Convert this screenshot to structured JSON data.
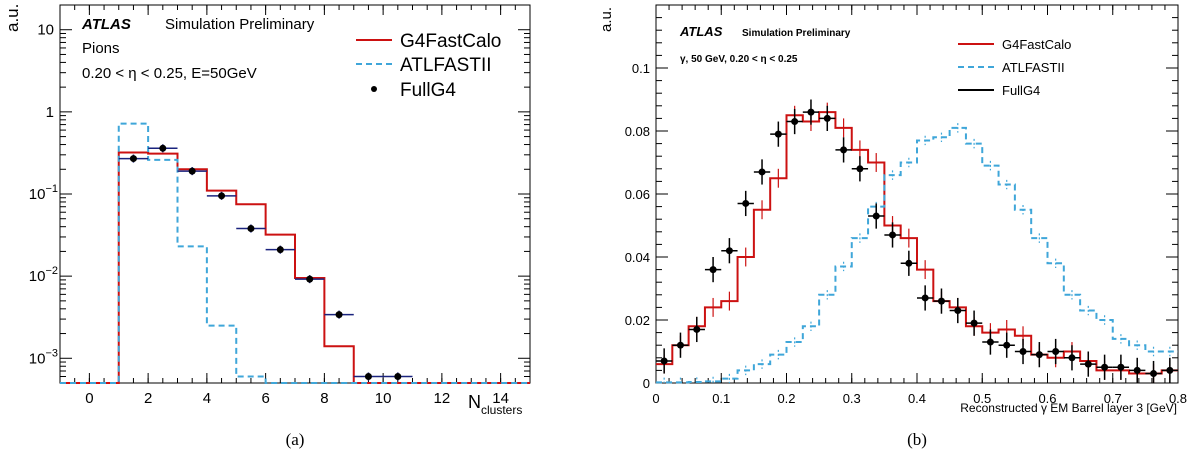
{
  "colors": {
    "g4": "#cc1111",
    "af": "#3fa6d9",
    "full": "#000000",
    "full_err_a": "#1a237e"
  },
  "captions": [
    "(a)",
    "(b)"
  ],
  "chart_data": [
    {
      "type": "line",
      "scale_y": "log",
      "xlim": [
        -1,
        15
      ],
      "ylim": [
        0.0005,
        20
      ],
      "xticks": [
        0,
        2,
        4,
        6,
        8,
        10,
        12,
        14
      ],
      "xtick_labels": [
        "0",
        "2",
        "4",
        "6",
        "8",
        "10",
        "12",
        "14"
      ],
      "yticks": [
        0.001,
        0.01,
        0.1,
        1,
        10
      ],
      "ytick_labels": [
        [
          "10",
          "−3"
        ],
        [
          "10",
          "−2"
        ],
        [
          "10",
          "−1"
        ],
        [
          "1",
          ""
        ],
        [
          "10",
          ""
        ]
      ],
      "ylabel": "a.u.",
      "xlabel_main": "N",
      "xlabel_sub": "clusters",
      "atlas": "ATLAS",
      "status": "Simulation Preliminary",
      "notes": [
        "Pions",
        "0.20 < η < 0.25, E=50GeV"
      ],
      "legend": [
        "G4FastCalo",
        "ATLFASTII",
        "FullG4"
      ],
      "floor": 0.0005,
      "series": [
        {
          "name": "G4FastCalo",
          "style": "step",
          "edges": [
            -1,
            0,
            1,
            2,
            3,
            4,
            5,
            6,
            7,
            8,
            9,
            10,
            11,
            12,
            13,
            14,
            15
          ],
          "values": [
            0.0005,
            0.0005,
            0.32,
            0.31,
            0.2,
            0.11,
            0.075,
            0.032,
            0.0095,
            0.0014,
            0.0005,
            0.0005,
            0.0005,
            0.0005,
            0.0005,
            0.0005
          ]
        },
        {
          "name": "ATLFASTII",
          "style": "step-dashed",
          "edges": [
            -1,
            0,
            1,
            2,
            3,
            4,
            5,
            6,
            7,
            8,
            9,
            10,
            11,
            12,
            13,
            14,
            15
          ],
          "values": [
            0.0005,
            0.0005,
            0.72,
            0.26,
            0.023,
            0.0025,
            0.0006,
            0.0005,
            0.0005,
            0.0005,
            0.0005,
            0.0005,
            0.0005,
            0.0005,
            0.0005,
            0.0005
          ]
        },
        {
          "name": "FullG4",
          "style": "points",
          "x": [
            1.5,
            2.5,
            3.5,
            4.5,
            5.5,
            6.5,
            7.5,
            8.5,
            9.5,
            10.5
          ],
          "y": [
            0.27,
            0.36,
            0.19,
            0.095,
            0.038,
            0.021,
            0.0092,
            0.0034,
            0.0006,
            0.0006
          ]
        }
      ]
    },
    {
      "type": "line",
      "scale_y": "linear",
      "xlim": [
        0,
        0.8
      ],
      "ylim": [
        0,
        0.12
      ],
      "xticks": [
        0,
        0.1,
        0.2,
        0.3,
        0.4,
        0.5,
        0.6,
        0.7,
        0.8
      ],
      "xtick_labels": [
        "0",
        "0.1",
        "0.2",
        "0.3",
        "0.4",
        "0.5",
        "0.6",
        "0.7",
        "0.8"
      ],
      "yticks": [
        0,
        0.02,
        0.04,
        0.06,
        0.08,
        0.1
      ],
      "ytick_labels": [
        "0",
        "0.02",
        "0.04",
        "0.06",
        "0.08",
        "0.1"
      ],
      "ylabel": "a.u.",
      "xlabel": "Reconstructed γ EM Barrel layer 3 [GeV]",
      "atlas": "ATLAS",
      "status": "Simulation Preliminary",
      "notes": [
        "γ, 50 GeV, 0.20 < η < 0.25"
      ],
      "legend": [
        "G4FastCalo",
        "ATLFASTII",
        "FullG4"
      ],
      "series": [
        {
          "name": "G4FastCalo",
          "style": "step",
          "values": [
            0.006,
            0.012,
            0.018,
            0.024,
            0.026,
            0.04,
            0.055,
            0.065,
            0.085,
            0.083,
            0.086,
            0.081,
            0.074,
            0.07,
            0.05,
            0.046,
            0.036,
            0.026,
            0.024,
            0.018,
            0.016,
            0.017,
            0.015,
            0.009,
            0.008,
            0.01,
            0.007,
            0.004,
            0.004,
            0.003,
            0.003,
            0.004
          ]
        },
        {
          "name": "ATLFASTII",
          "style": "step-dashed",
          "values": [
            0.0002,
            0.0002,
            0.0003,
            0.0005,
            0.0014,
            0.004,
            0.006,
            0.009,
            0.013,
            0.018,
            0.028,
            0.037,
            0.046,
            0.056,
            0.066,
            0.07,
            0.077,
            0.078,
            0.081,
            0.076,
            0.069,
            0.063,
            0.055,
            0.046,
            0.038,
            0.028,
            0.023,
            0.02,
            0.014,
            0.012,
            0.01,
            0.01
          ]
        },
        {
          "name": "FullG4",
          "style": "points",
          "x": [
            0.0125,
            0.0375,
            0.0625,
            0.0875,
            0.1125,
            0.1375,
            0.1625,
            0.1875,
            0.2125,
            0.2375,
            0.2625,
            0.2875,
            0.3125,
            0.3375,
            0.3625,
            0.3875,
            0.4125,
            0.4375,
            0.4625,
            0.4875,
            0.5125,
            0.5375,
            0.5625,
            0.5875,
            0.6125,
            0.6375,
            0.6625,
            0.6875,
            0.7125,
            0.7375,
            0.7625,
            0.7875
          ],
          "y": [
            0.007,
            0.012,
            0.017,
            0.036,
            0.042,
            0.057,
            0.067,
            0.079,
            0.083,
            0.086,
            0.084,
            0.074,
            0.068,
            0.053,
            0.047,
            0.038,
            0.027,
            0.026,
            0.023,
            0.019,
            0.013,
            0.012,
            0.01,
            0.009,
            0.01,
            0.008,
            0.006,
            0.005,
            0.005,
            0.004,
            0.003,
            0.004
          ]
        }
      ]
    }
  ]
}
